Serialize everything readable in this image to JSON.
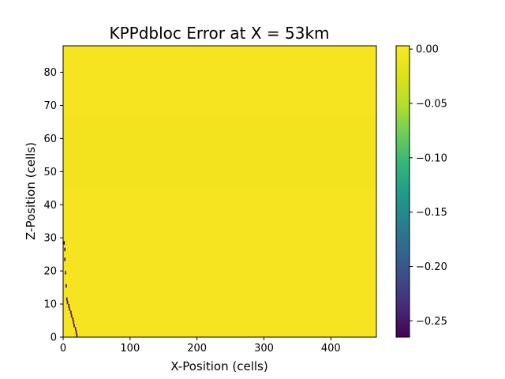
{
  "chart_data": {
    "type": "heatmap",
    "title": "KPPdbloc Error at X = 53km",
    "xlabel": "X-Position (cells)",
    "ylabel": "Z-Position (cells)",
    "xlim": [
      0,
      468
    ],
    "ylim": [
      0,
      88
    ],
    "xticks": [
      0,
      100,
      200,
      300,
      400
    ],
    "yticks": [
      0,
      10,
      20,
      30,
      40,
      50,
      60,
      70,
      80
    ],
    "colorbar": {
      "colormap": "viridis",
      "range": [
        -0.265,
        0.003
      ],
      "ticks": [
        0.0,
        -0.05,
        -0.1,
        -0.15,
        -0.2,
        -0.25
      ],
      "tick_labels": [
        "0.00",
        "−0.05",
        "−0.10",
        "−0.15",
        "−0.20",
        "−0.25"
      ]
    },
    "background_value": 0.0,
    "faint_band": {
      "z_range": [
        45,
        67
      ],
      "value": -0.002
    },
    "error_cells": [
      {
        "x": 1,
        "z": 28,
        "value": -0.26
      },
      {
        "x": 2,
        "z": 26,
        "value": -0.26
      },
      {
        "x": 2,
        "z": 23,
        "value": -0.24
      },
      {
        "x": 3,
        "z": 19,
        "value": -0.25
      },
      {
        "x": 4,
        "z": 15,
        "value": -0.26
      },
      {
        "x": 5,
        "z": 11,
        "value": -0.26
      },
      {
        "x": 6,
        "z": 10,
        "value": -0.26
      },
      {
        "x": 8,
        "z": 9,
        "value": -0.26
      },
      {
        "x": 9,
        "z": 8,
        "value": -0.26
      },
      {
        "x": 11,
        "z": 7,
        "value": -0.26
      },
      {
        "x": 12,
        "z": 6,
        "value": -0.26
      },
      {
        "x": 14,
        "z": 5,
        "value": -0.26
      },
      {
        "x": 15,
        "z": 4,
        "value": -0.26
      },
      {
        "x": 16,
        "z": 3,
        "value": -0.26
      },
      {
        "x": 18,
        "z": 2,
        "value": -0.26
      },
      {
        "x": 19,
        "z": 1,
        "value": -0.26
      },
      {
        "x": 20,
        "z": 0,
        "value": -0.26
      }
    ]
  }
}
